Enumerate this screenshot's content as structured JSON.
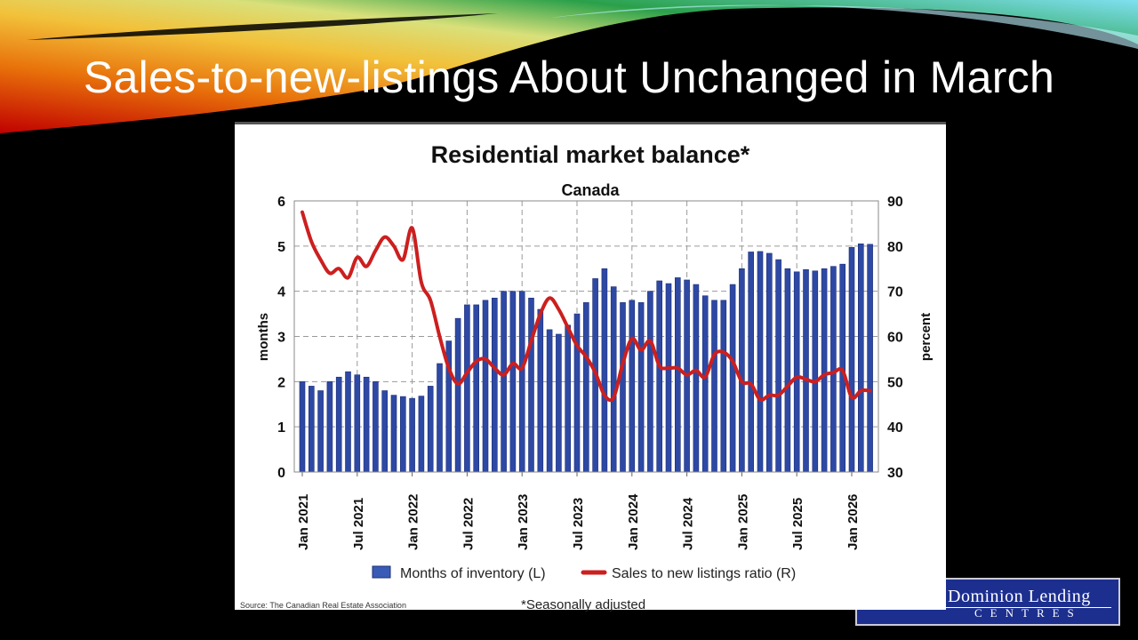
{
  "slide": {
    "title": "Sales-to-new-listings About Unchanged in March"
  },
  "logo": {
    "line1": "Dominion Lending",
    "line2": "CENTRES"
  },
  "colors": {
    "bar": "#2e49a4",
    "line": "#cc1f1f",
    "grid": "#9a9a9a"
  },
  "chart_data": {
    "type": "bar+line",
    "title": "Residential market balance*",
    "subtitle": "Canada",
    "ylabel": "months",
    "y2label": "percent",
    "ylim": [
      0,
      6
    ],
    "y2lim": [
      30,
      90
    ],
    "yticks": [
      "0",
      "1",
      "2",
      "3",
      "4",
      "5",
      "6"
    ],
    "y2ticks": [
      "30",
      "40",
      "50",
      "60",
      "70",
      "80",
      "90"
    ],
    "xtick_labels": [
      "Jan 2021",
      "Jul 2021",
      "Jan 2022",
      "Jul 2022",
      "Jan 2023",
      "Jul 2023",
      "Jan 2024",
      "Jul 2024",
      "Jan 2025",
      "Jul 2025",
      "Jan 2026"
    ],
    "x_start": "Jan 2021",
    "x_end": "Mar 2026",
    "grid": true,
    "legend_position": "bottom",
    "series": [
      {
        "name": "Months of inventory (L)",
        "type": "bar",
        "axis": "left",
        "values": [
          2.0,
          1.9,
          1.8,
          2.0,
          2.1,
          2.22,
          2.15,
          2.1,
          2.0,
          1.8,
          1.7,
          1.67,
          1.63,
          1.68,
          1.9,
          2.4,
          2.9,
          3.4,
          3.7,
          3.7,
          3.8,
          3.85,
          4.0,
          4.0,
          4.0,
          3.85,
          3.6,
          3.15,
          3.05,
          3.25,
          3.5,
          3.75,
          4.28,
          4.5,
          4.1,
          3.75,
          3.8,
          3.75,
          4.0,
          4.23,
          4.17,
          4.3,
          4.25,
          4.15,
          3.9,
          3.8,
          3.8,
          4.15,
          4.5,
          4.87,
          4.88,
          4.84,
          4.7,
          4.5,
          4.43,
          4.48,
          4.45,
          4.5,
          4.55,
          4.6,
          4.97,
          5.05,
          5.04
        ]
      },
      {
        "name": "Sales to new listings ratio (R)",
        "type": "line",
        "axis": "right",
        "values": [
          87.5,
          81,
          77,
          74,
          75,
          73,
          77.5,
          75.5,
          79,
          82,
          80,
          77,
          84,
          72,
          68,
          60,
          53,
          49.5,
          52,
          54.5,
          55,
          53,
          51.5,
          54,
          53,
          59,
          65,
          68.5,
          66,
          62,
          58,
          55.5,
          52,
          47,
          46.5,
          54,
          59.5,
          57,
          59,
          53.5,
          53,
          53,
          51.5,
          52.5,
          51,
          56,
          56.5,
          54.5,
          50,
          49.5,
          46,
          47,
          47,
          49,
          51,
          50.5,
          50,
          51.5,
          52,
          52.5,
          46.5,
          48,
          48
        ]
      }
    ],
    "footnote": "*Seasonally adjusted",
    "source": "Source: The Canadian Real Estate Association"
  }
}
